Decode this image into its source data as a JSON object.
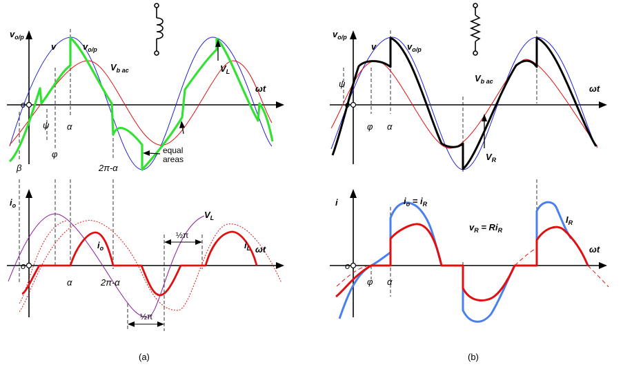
{
  "panel_a": {
    "caption": "(a)",
    "upper": {
      "y_axis": "v",
      "y_axis_sub": "o/p",
      "x_axis": "ωt",
      "origin": "o",
      "curve_v": "v",
      "curve_vop": "v",
      "curve_vop_sub": "o/p",
      "curve_vbac": "V",
      "curve_vbac_sub": "b ac",
      "curve_vl": "V",
      "curve_vl_sub": "L",
      "note_line1": "equal",
      "note_line2": "areas",
      "angle_psi": "ψ",
      "angle_alpha": "α",
      "angle_phi": "φ",
      "angle_2pi_alpha": "2π-α",
      "angle_beta": "β"
    },
    "lower": {
      "y_axis": "i",
      "y_axis_sub": "o",
      "x_axis": "ωt",
      "origin": "o",
      "curve_io": "i",
      "curve_io_sub": "o",
      "curve_il": "i",
      "curve_il_sub": "L",
      "curve_vl": "V",
      "curve_vl_sub": "L",
      "angle_alpha": "α",
      "angle_2pi_alpha": "2π-α",
      "half_pi_top": "½π",
      "half_pi_bottom": "½π"
    }
  },
  "panel_b": {
    "caption": "(b)",
    "upper": {
      "y_axis": "v",
      "y_axis_sub": "o/p",
      "x_axis": "ωt",
      "origin": "o",
      "curve_v": "v",
      "curve_vop": "v",
      "curve_vop_sub": "o/p",
      "curve_vbac": "V",
      "curve_vbac_sub": "b ac",
      "curve_vr": "V",
      "curve_vr_sub": "R",
      "angle_psi": "ψ",
      "angle_phi": "φ",
      "angle_alpha": "α"
    },
    "lower": {
      "y_axis": "i",
      "x_axis": "ωt",
      "origin": "o",
      "eq_io_lhs": "i",
      "eq_io_lhs_sub": "o",
      "eq_io_eq": " = i",
      "eq_io_rhs_sub": "R",
      "eq_vr_lhs": "v",
      "eq_vr_lhs_sub": "R",
      "eq_vr_eq": " = Ri",
      "eq_vr_rhs_sub": "R",
      "curve_ir": "I",
      "curve_ir_sub": "R",
      "angle_phi": "φ",
      "angle_alpha": "α"
    }
  },
  "colors": {
    "supply_v": "#1f1fd6",
    "back_emf": "#e01010",
    "output_inductive": "#33e033",
    "output_resistive": "#000000",
    "inductor_voltage": "#8a1a9e",
    "current": "#e01010",
    "current_resistive": "#4a7ff0"
  },
  "icons": [
    "inductor-symbol-icon",
    "resistor-symbol-icon"
  ]
}
